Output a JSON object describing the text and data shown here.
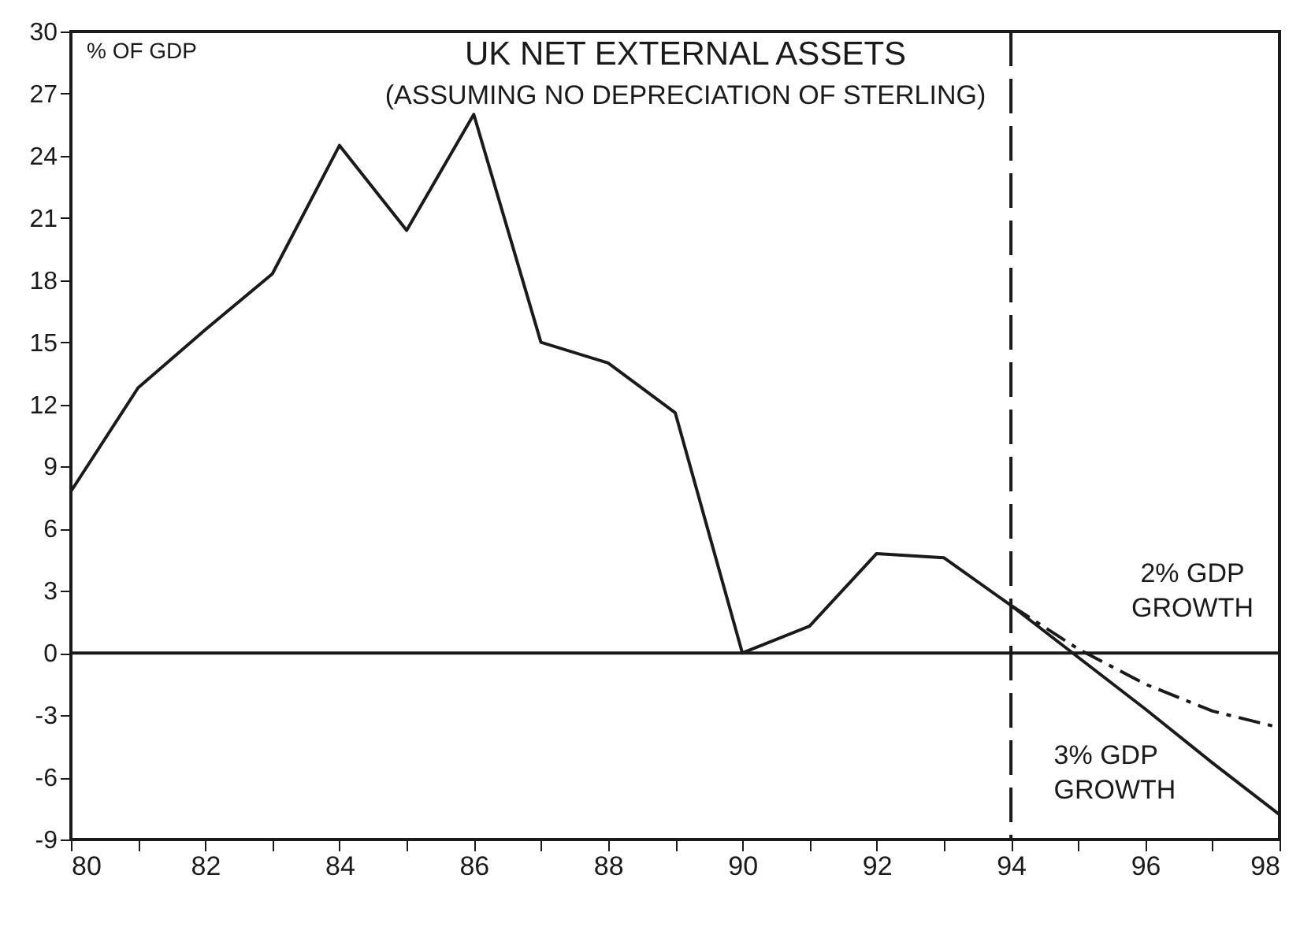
{
  "chart_data": {
    "type": "line",
    "title": "UK NET EXTERNAL ASSETS",
    "subtitle": "(ASSUMING NO DEPRECIATION OF STERLING)",
    "ylabel": "% OF GDP",
    "series": [
      {
        "color": "#1a1a1a",
        "line_style": "solid",
        "x": [
          80,
          81,
          82,
          83,
          84,
          85,
          86,
          87,
          88,
          89,
          90,
          91,
          92,
          93,
          94,
          95,
          96,
          97,
          98
        ],
        "values": [
          7.8,
          12.8,
          15.6,
          18.3,
          24.5,
          20.4,
          26,
          15,
          14,
          11.6,
          0,
          1.3,
          4.8,
          4.6,
          2.3,
          -0.2,
          -2.7,
          -5.3,
          -7.8
        ]
      },
      {
        "name": "2% GDP GROWTH",
        "color": "#1a1a1a",
        "line_style": "dashed",
        "x": [
          94,
          95,
          96,
          97,
          98
        ],
        "values": [
          2.3,
          0.2,
          -1.5,
          -2.8,
          -3.6
        ]
      }
    ],
    "annotations": [
      {
        "text": "3% GDP GROWTH",
        "x": 96,
        "y": -2.7
      }
    ],
    "xlim": [
      80,
      98
    ],
    "xticks": [
      80,
      {
        "value": 81,
        "label": null
      },
      82,
      {
        "value": 83,
        "label": null
      },
      84,
      {
        "value": 85,
        "label": null
      },
      86,
      {
        "value": 87,
        "label": null
      },
      88,
      {
        "value": 89,
        "label": null
      },
      90,
      {
        "value": 91,
        "label": null
      },
      92,
      {
        "value": 93,
        "label": null
      },
      94,
      {
        "value": 95,
        "label": null
      },
      96,
      {
        "value": 97,
        "label": null
      },
      98
    ],
    "ylim": [
      -9,
      30
    ],
    "yticks": [
      -9,
      -6,
      -3,
      0,
      3,
      6,
      9,
      12,
      15,
      18,
      21,
      24,
      27,
      30
    ],
    "ref_lines": [
      {
        "axis": "y",
        "value": 0,
        "color": "#1a1a1a",
        "line_style": "solid"
      },
      {
        "axis": "x",
        "value": 94,
        "color": "#1a1a1a",
        "line_style": "dashed"
      }
    ],
    "grid": false,
    "marker": "none"
  }
}
